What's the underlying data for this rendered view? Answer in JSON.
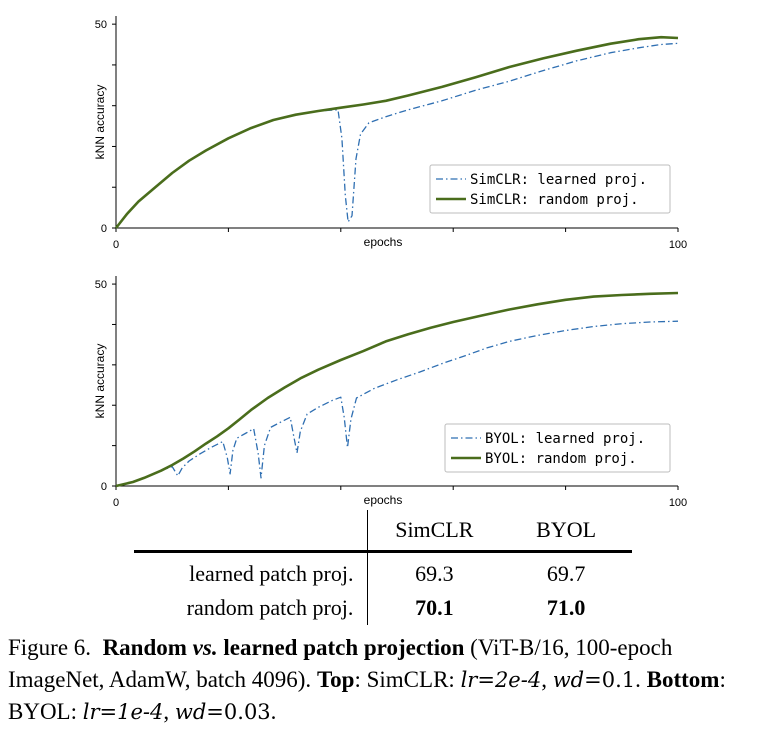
{
  "chart_data": [
    {
      "type": "line",
      "name": "top",
      "xlabel": "epochs",
      "ylabel": "kNN accuracy",
      "xlim": [
        0,
        100
      ],
      "ylim": [
        0,
        52
      ],
      "xticks": [
        0,
        20,
        40,
        60,
        80,
        100
      ],
      "xtick_labels": [
        "0",
        "100"
      ],
      "yticks": [
        0,
        10,
        20,
        30,
        40,
        50
      ],
      "ytick_labels": [
        "0",
        "50"
      ],
      "legend_position": "lower-right",
      "series": [
        {
          "name": "SimCLR: learned proj.",
          "style": "dashdot",
          "color": "#2f6fb2",
          "points": [
            [
              0,
              0
            ],
            [
              2,
              3.5
            ],
            [
              4,
              6.5
            ],
            [
              7,
              10
            ],
            [
              10,
              13.5
            ],
            [
              13,
              16.5
            ],
            [
              16,
              19
            ],
            [
              20,
              22
            ],
            [
              24,
              24.5
            ],
            [
              28,
              26.5
            ],
            [
              32,
              27.8
            ],
            [
              36,
              28.7
            ],
            [
              39.5,
              29
            ],
            [
              40.2,
              22
            ],
            [
              40.8,
              8
            ],
            [
              41.3,
              1.5
            ],
            [
              42,
              3
            ],
            [
              42.7,
              17
            ],
            [
              43.5,
              23
            ],
            [
              45,
              25.8
            ],
            [
              48,
              27.3
            ],
            [
              52,
              29
            ],
            [
              58,
              31.2
            ],
            [
              64,
              33.8
            ],
            [
              70,
              36
            ],
            [
              76,
              38.6
            ],
            [
              82,
              41
            ],
            [
              88,
              43
            ],
            [
              93,
              44.2
            ],
            [
              97,
              45
            ],
            [
              100,
              45.3
            ]
          ]
        },
        {
          "name": "SimCLR: random proj.",
          "style": "solid",
          "color": "#4a6d1c",
          "points": [
            [
              0,
              0
            ],
            [
              2,
              3.5
            ],
            [
              4,
              6.5
            ],
            [
              7,
              10
            ],
            [
              10,
              13.5
            ],
            [
              13,
              16.5
            ],
            [
              16,
              19
            ],
            [
              20,
              22
            ],
            [
              24,
              24.5
            ],
            [
              28,
              26.5
            ],
            [
              32,
              27.8
            ],
            [
              36,
              28.7
            ],
            [
              40,
              29.5
            ],
            [
              44,
              30.3
            ],
            [
              48,
              31.2
            ],
            [
              52,
              32.5
            ],
            [
              58,
              34.6
            ],
            [
              64,
              37
            ],
            [
              70,
              39.5
            ],
            [
              76,
              41.6
            ],
            [
              82,
              43.5
            ],
            [
              88,
              45.2
            ],
            [
              93,
              46.3
            ],
            [
              97,
              46.8
            ],
            [
              100,
              46.6
            ]
          ]
        }
      ]
    },
    {
      "type": "line",
      "name": "bottom",
      "xlabel": "epochs",
      "ylabel": "kNN accuracy",
      "xlim": [
        0,
        100
      ],
      "ylim": [
        0,
        52
      ],
      "xticks": [
        0,
        20,
        40,
        60,
        80,
        100
      ],
      "xtick_labels": [
        "0",
        "100"
      ],
      "yticks": [
        0,
        10,
        20,
        30,
        40,
        50
      ],
      "ytick_labels": [
        "0",
        "50"
      ],
      "legend_position": "lower-right",
      "series": [
        {
          "name": "BYOL: learned proj.",
          "style": "dashdot",
          "color": "#2f6fb2",
          "points": [
            [
              0,
              0
            ],
            [
              3,
              1
            ],
            [
              5,
              2
            ],
            [
              8,
              3.8
            ],
            [
              10,
              4.8
            ],
            [
              11,
              2.5
            ],
            [
              11.8,
              4.5
            ],
            [
              13,
              6.2
            ],
            [
              15,
              8
            ],
            [
              17,
              9.6
            ],
            [
              19,
              11
            ],
            [
              19.8,
              7
            ],
            [
              20.3,
              3
            ],
            [
              20.8,
              8.8
            ],
            [
              21.5,
              11.8
            ],
            [
              23,
              13
            ],
            [
              24.5,
              14.2
            ],
            [
              25.3,
              8
            ],
            [
              25.8,
              2
            ],
            [
              26.4,
              10
            ],
            [
              27.5,
              14.5
            ],
            [
              29,
              15.6
            ],
            [
              31,
              17
            ],
            [
              31.6,
              12.5
            ],
            [
              32.2,
              8.2
            ],
            [
              32.8,
              13.5
            ],
            [
              34,
              17.8
            ],
            [
              36,
              19.5
            ],
            [
              38.5,
              21.2
            ],
            [
              40,
              22
            ],
            [
              40.6,
              17
            ],
            [
              41.2,
              9.5
            ],
            [
              41.8,
              16.5
            ],
            [
              42.8,
              21.8
            ],
            [
              46,
              24.2
            ],
            [
              50,
              26.3
            ],
            [
              54,
              28.2
            ],
            [
              58,
              30.3
            ],
            [
              62,
              32.2
            ],
            [
              66,
              34.2
            ],
            [
              70,
              35.8
            ],
            [
              75,
              37.3
            ],
            [
              80,
              38.5
            ],
            [
              85,
              39.5
            ],
            [
              90,
              40.2
            ],
            [
              95,
              40.6
            ],
            [
              100,
              40.8
            ]
          ]
        },
        {
          "name": "BYOL: random proj.",
          "style": "solid",
          "color": "#4a6d1c",
          "points": [
            [
              0,
              0
            ],
            [
              3,
              1
            ],
            [
              5,
              2
            ],
            [
              8,
              3.8
            ],
            [
              10,
              5.2
            ],
            [
              12,
              6.8
            ],
            [
              14,
              8.6
            ],
            [
              16,
              10.5
            ],
            [
              18,
              12.3
            ],
            [
              20,
              14.3
            ],
            [
              22,
              16.5
            ],
            [
              24,
              18.8
            ],
            [
              27,
              21.8
            ],
            [
              30,
              24.4
            ],
            [
              33,
              26.8
            ],
            [
              36,
              28.8
            ],
            [
              40,
              31.2
            ],
            [
              44,
              33.4
            ],
            [
              48,
              35.8
            ],
            [
              52,
              37.6
            ],
            [
              56,
              39.2
            ],
            [
              60,
              40.6
            ],
            [
              65,
              42.2
            ],
            [
              70,
              43.7
            ],
            [
              75,
              45
            ],
            [
              80,
              46.1
            ],
            [
              85,
              46.9
            ],
            [
              90,
              47.3
            ],
            [
              95,
              47.6
            ],
            [
              100,
              47.8
            ]
          ]
        }
      ]
    }
  ],
  "table": {
    "headers": [
      "",
      "SimCLR",
      "BYOL"
    ],
    "rows": [
      {
        "label": "learned patch proj.",
        "simclr": "69.3",
        "byol": "69.7"
      },
      {
        "label": "random patch proj.",
        "simclr": "70.1",
        "byol": "71.0"
      }
    ]
  },
  "caption": {
    "prefix": "Figure 6.",
    "title": "Random",
    "vs": "vs.",
    "title2": "learned patch projection",
    "setup": "(ViT-B/16, 100-epoch ImageNet, AdamW, batch 4096).",
    "top_label": "Top",
    "top_text": ": SimCLR:",
    "lr_sym": "lr",
    "eq": "=",
    "top_lr": "2e-4",
    "comma": ",",
    "wd_sym": "wd",
    "top_wd": "0.1",
    "period": ".",
    "bottom_label": "Bottom",
    "bottom_text": ": BYOL:",
    "bottom_lr": "1e-4",
    "bottom_wd": "0.03"
  }
}
